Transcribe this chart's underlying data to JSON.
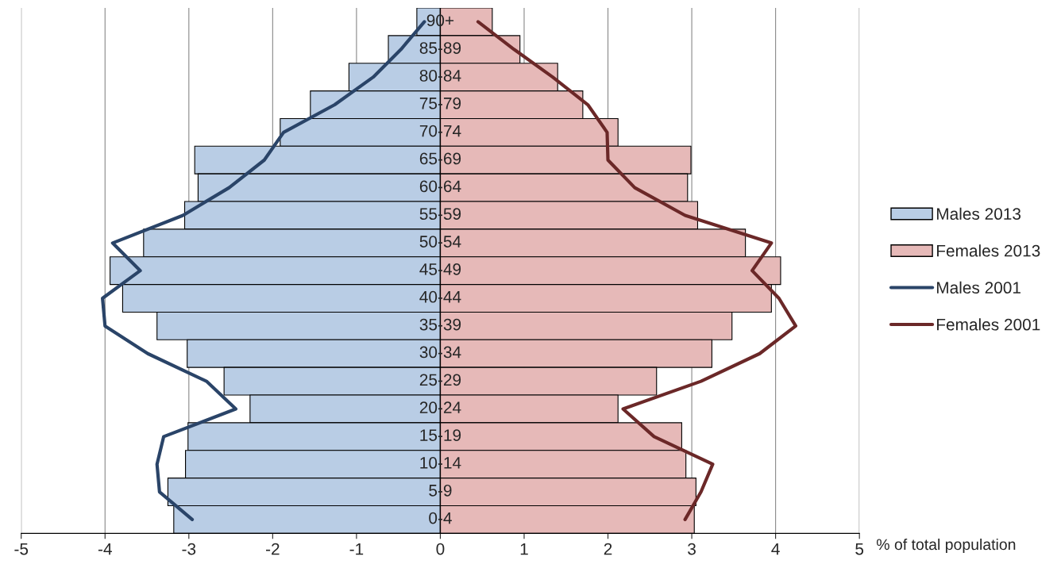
{
  "chart_data": {
    "type": "bar",
    "orientation": "horizontal",
    "stacked": true,
    "xlabel": "% of total population",
    "categories": [
      "90+",
      "85-89",
      "80-84",
      "75-79",
      "70-74",
      "65-69",
      "60-64",
      "55-59",
      "50-54",
      "45-49",
      "40-44",
      "35-39",
      "30-34",
      "25-29",
      "20-24",
      "15-19",
      "10-14",
      "5-9",
      "0-4"
    ],
    "series": [
      {
        "name": "Males 2013",
        "color": "#b9cde5",
        "values": [
          -0.28,
          -0.62,
          -1.09,
          -1.55,
          -1.91,
          -2.93,
          -2.89,
          -3.05,
          -3.54,
          -3.94,
          -3.79,
          -3.38,
          -3.02,
          -2.58,
          -2.27,
          -3.01,
          -3.04,
          -3.25,
          -3.18
        ]
      },
      {
        "name": "Females 2013",
        "color": "#e6b9b8",
        "values": [
          0.62,
          0.95,
          1.4,
          1.7,
          2.12,
          2.99,
          2.95,
          3.07,
          3.64,
          4.06,
          3.95,
          3.48,
          3.24,
          2.58,
          2.12,
          2.88,
          2.93,
          3.05,
          3.03
        ]
      },
      {
        "name": "Males 2001",
        "type": "line",
        "color": "#2a4468",
        "values": [
          -0.19,
          -0.47,
          -0.8,
          -1.26,
          -1.87,
          -2.1,
          -2.52,
          -3.07,
          -3.91,
          -3.58,
          -4.03,
          -4.0,
          -3.49,
          -2.79,
          -2.44,
          -3.3,
          -3.38,
          -3.35,
          -2.96
        ]
      },
      {
        "name": "Females 2001",
        "type": "line",
        "color": "#6b2828",
        "values": [
          0.45,
          0.88,
          1.34,
          1.76,
          1.99,
          2.0,
          2.32,
          2.92,
          3.95,
          3.72,
          4.04,
          4.24,
          3.81,
          3.11,
          2.18,
          2.55,
          3.25,
          3.11,
          2.92
        ]
      }
    ],
    "xlim": [
      -5,
      5
    ],
    "xticks": [
      -5,
      -4,
      -3,
      -2,
      -1,
      0,
      1,
      2,
      3,
      4,
      5
    ],
    "grid": "x",
    "legend": "right",
    "marker": "none",
    "line_style": "solid"
  }
}
